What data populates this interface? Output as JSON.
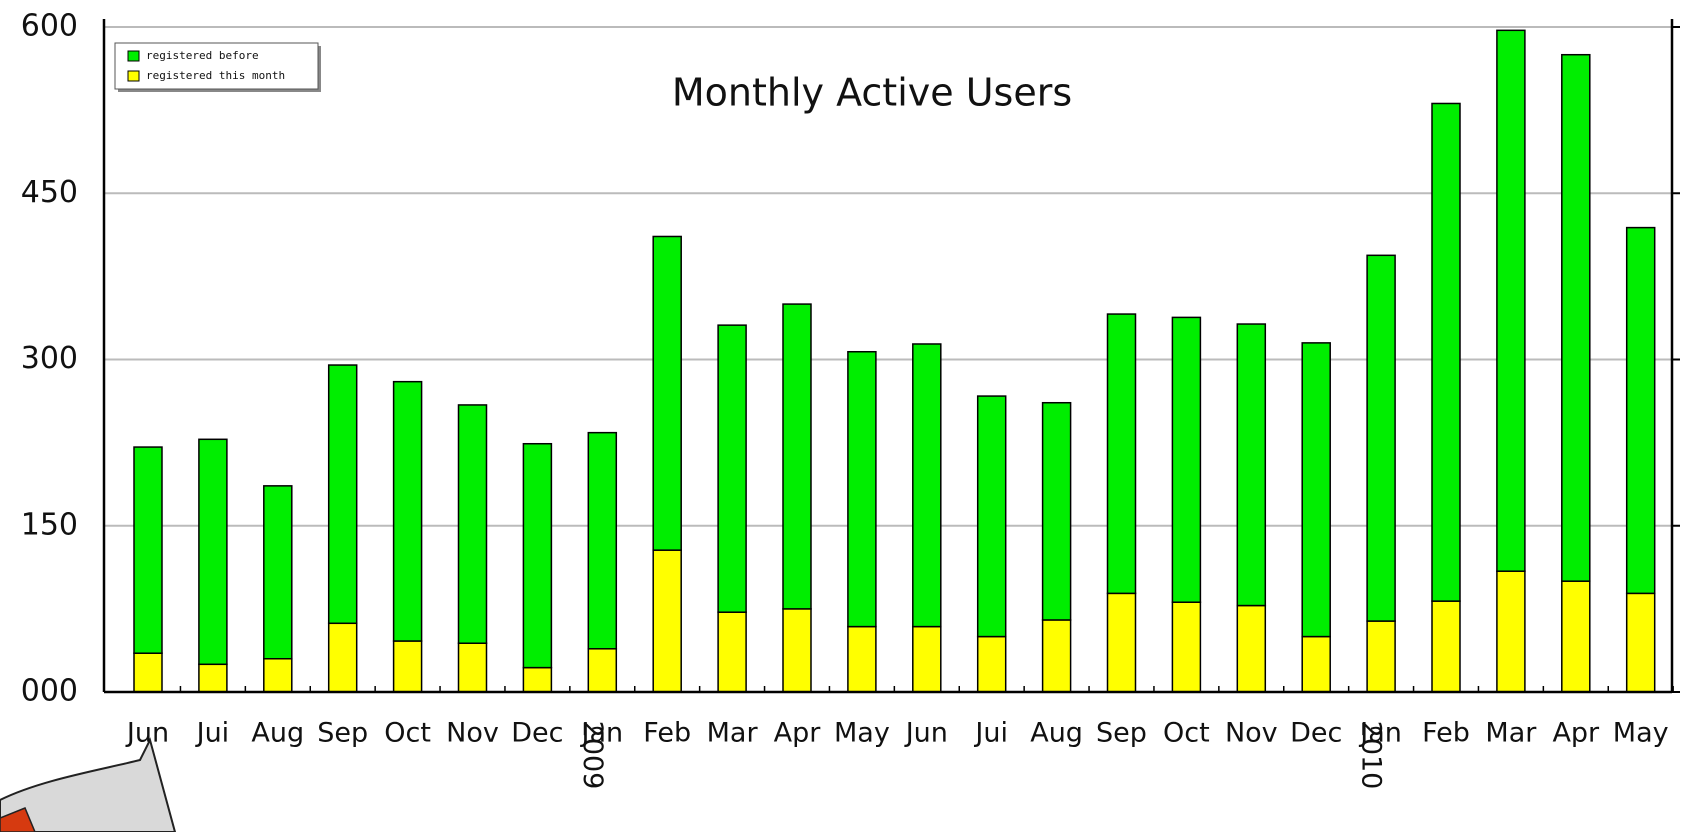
{
  "chart_data": {
    "type": "stacked-bar",
    "title": "Monthly Active Users",
    "categories": [
      "Jun",
      "Jui",
      "Aug",
      "Sep",
      "Oct",
      "Nov",
      "Dec",
      "Jan",
      "Feb",
      "Mar",
      "Apr",
      "May",
      "Jun",
      "Jui",
      "Aug",
      "Sep",
      "Oct",
      "Nov",
      "Dec",
      "Jan",
      "Feb",
      "Mar",
      "Apr",
      "May"
    ],
    "category_years": [
      null,
      null,
      null,
      null,
      null,
      null,
      null,
      "2009",
      null,
      null,
      null,
      null,
      null,
      null,
      null,
      null,
      null,
      null,
      null,
      "2010",
      null,
      null,
      null,
      null
    ],
    "series": [
      {
        "name": "registered before",
        "color": "#00ee00",
        "values": [
          186,
          203,
          156,
          233,
          234,
          215,
          202,
          195,
          283,
          259,
          275,
          248,
          255,
          217,
          196,
          252,
          257,
          254,
          265,
          330,
          449,
          488,
          475,
          330
        ]
      },
      {
        "name": "registered this month",
        "color": "#ffff00",
        "values": [
          35,
          25,
          30,
          62,
          46,
          44,
          22,
          39,
          128,
          72,
          75,
          59,
          59,
          50,
          65,
          89,
          81,
          78,
          50,
          64,
          82,
          109,
          100,
          89
        ]
      }
    ],
    "ylim": [
      0,
      600
    ],
    "yticks": [
      {
        "value": 0,
        "label": "000"
      },
      150,
      300,
      450,
      600
    ],
    "grid": true
  }
}
